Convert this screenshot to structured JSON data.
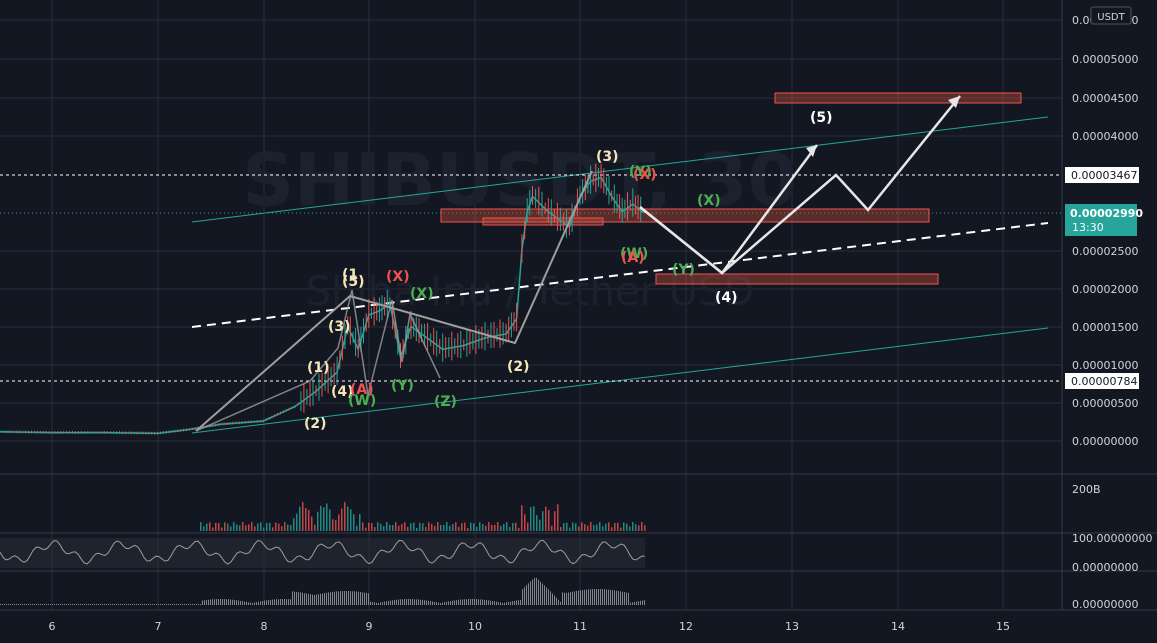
{
  "watermark": {
    "symbol": "SHIBUSDT, 30",
    "name": "Shiba Inu / Tether USD"
  },
  "currency_label": "USDT",
  "colors": {
    "bg": "#131722",
    "grid": "#2a2e39",
    "axis_text": "#d1d4dc",
    "teal": "#26a69a",
    "red": "#ef5350",
    "box_fill": "#e0533a",
    "white": "#ffffff",
    "gray_path": "#9e9e9e"
  },
  "price_axis": {
    "ticks": [
      "0.00005500",
      "0.00005000",
      "0.00004500",
      "0.00004000",
      "0.00002500",
      "0.00002000",
      "0.00001500",
      "0.00001000",
      "0.00000500",
      "0.00000000"
    ],
    "marker_high": "0.00003467",
    "marker_low": "0.00000784",
    "current_price": "0.00002990",
    "countdown": "13:30"
  },
  "volume_axis": {
    "label": "200B"
  },
  "osc_axis": {
    "upper": "100.00000000",
    "lower": "0.00000000"
  },
  "ind3_axis": {
    "label": "0.00000000"
  },
  "time_axis": {
    "labels": [
      "6",
      "7",
      "8",
      "9",
      "10",
      "11",
      "12",
      "13",
      "14",
      "15"
    ]
  },
  "waves": [
    {
      "t": "(1)",
      "c": "#f5e6b8"
    },
    {
      "t": "(2)",
      "c": "#f5e6b8"
    },
    {
      "t": "(3)",
      "c": "#f5e6b8"
    },
    {
      "t": "(4)",
      "c": "#f5e6b8"
    },
    {
      "t": "(5)",
      "c": "#f5e6b8"
    },
    {
      "t": "(1",
      "c": "#f5e6b8"
    },
    {
      "t": "(A)",
      "c": "#ef5350"
    },
    {
      "t": "(W)",
      "c": "#4caf50"
    },
    {
      "t": "(X)",
      "c": "#ef5350"
    },
    {
      "t": "(X)",
      "c": "#4caf50"
    },
    {
      "t": "(Y)",
      "c": "#4caf50"
    },
    {
      "t": "(Z)",
      "c": "#4caf50"
    },
    {
      "t": "(2)",
      "c": "#f5e6b8"
    },
    {
      "t": "(3)",
      "c": "#f5e6b8"
    },
    {
      "t": "(Y)",
      "c": "#4caf50"
    },
    {
      "t": "(X)",
      "c": "#ef5350"
    },
    {
      "t": "(W)",
      "c": "#4caf50"
    },
    {
      "t": "(A)",
      "c": "#ef5350"
    },
    {
      "t": "(X)",
      "c": "#4caf50"
    },
    {
      "t": "(Y)",
      "c": "#4caf50"
    },
    {
      "t": "(4)",
      "c": "#ffffff"
    },
    {
      "t": "(5)",
      "c": "#ffffff"
    }
  ],
  "chart_data": {
    "type": "line",
    "title": "SHIBUSDT, 30",
    "subtitle": "Shiba Inu / Tether USD",
    "xlabel": "",
    "ylabel": "",
    "x_ticks": [
      "6",
      "7",
      "8",
      "9",
      "10",
      "11",
      "12",
      "13",
      "14",
      "15"
    ],
    "ylim": [
      0,
      5.5e-05
    ],
    "grid": true,
    "series": [
      {
        "values_t": [
          5.5,
          6,
          6.5,
          7,
          7.3,
          7.6,
          8.0,
          8.3,
          8.5,
          8.7,
          8.8,
          8.9,
          9.0,
          9.1,
          9.2,
          9.3,
          9.4,
          9.5,
          9.7,
          9.9,
          10.1,
          10.3,
          10.4,
          10.45,
          10.5,
          10.55,
          10.7,
          10.9,
          11.0,
          11.1,
          11.2,
          11.3,
          11.4,
          11.5,
          11.6
        ],
        "values": [
          1.2e-06,
          1.1e-06,
          1.1e-06,
          1e-06,
          1.5e-06,
          2.2e-06,
          2.6e-06,
          4.5e-06,
          6.5e-06,
          9e-06,
          1.5e-05,
          1.2e-05,
          1.65e-05,
          1.7e-05,
          1.8e-05,
          1.1e-05,
          1.5e-05,
          1.4e-05,
          1.2e-05,
          1.25e-05,
          1.35e-05,
          1.4e-05,
          1.6e-05,
          2.5e-05,
          3e-05,
          3.2e-05,
          3e-05,
          2.8e-05,
          3.2e-05,
          3.4e-05,
          3.45e-05,
          3.2e-05,
          3e-05,
          3.1e-05,
          2.99e-05
        ]
      }
    ],
    "current_price": 2.99e-05,
    "levels": [
      3.467e-05,
      7.84e-06
    ]
  }
}
